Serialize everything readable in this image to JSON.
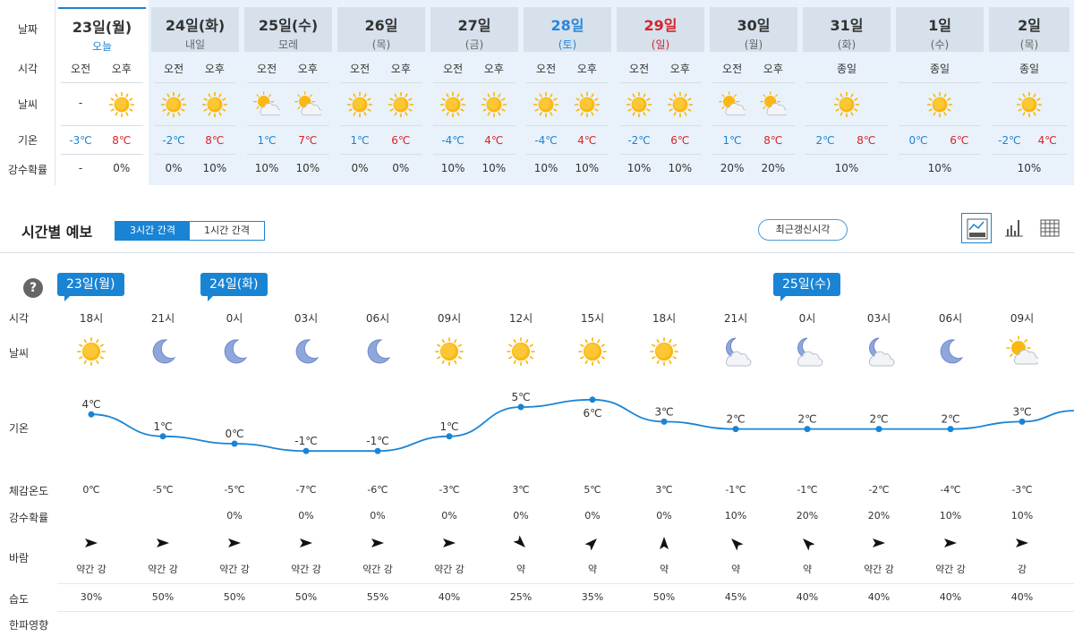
{
  "weekly": {
    "row_labels": [
      "날짜",
      "시각",
      "날씨",
      "기온",
      "강수확률"
    ],
    "days": [
      {
        "name": "23일(월)",
        "sub": "오늘",
        "type": "today",
        "split": true,
        "slots": [
          {
            "label": "오전",
            "wx": "",
            "wx_text": "-",
            "temp": "-3℃",
            "prob": "-"
          },
          {
            "label": "오후",
            "wx": "sun",
            "wx_text": "",
            "temp": "8℃",
            "prob": "0%"
          }
        ]
      },
      {
        "name": "24일(화)",
        "sub": "내일",
        "type": "normal",
        "split": true,
        "slots": [
          {
            "label": "오전",
            "wx": "sun",
            "wx_text": "",
            "temp": "-2℃",
            "prob": "0%"
          },
          {
            "label": "오후",
            "wx": "sun",
            "wx_text": "",
            "temp": "8℃",
            "prob": "10%"
          }
        ]
      },
      {
        "name": "25일(수)",
        "sub": "모레",
        "type": "normal",
        "split": true,
        "slots": [
          {
            "label": "오전",
            "wx": "suncloud",
            "wx_text": "",
            "temp": "1℃",
            "prob": "10%"
          },
          {
            "label": "오후",
            "wx": "suncloud",
            "wx_text": "",
            "temp": "7℃",
            "prob": "10%"
          }
        ]
      },
      {
        "name": "26일",
        "sub": "(목)",
        "type": "normal",
        "split": true,
        "slots": [
          {
            "label": "오전",
            "wx": "sun",
            "wx_text": "",
            "temp": "1℃",
            "prob": "0%"
          },
          {
            "label": "오후",
            "wx": "sun",
            "wx_text": "",
            "temp": "6℃",
            "prob": "0%"
          }
        ]
      },
      {
        "name": "27일",
        "sub": "(금)",
        "type": "normal",
        "split": true,
        "slots": [
          {
            "label": "오전",
            "wx": "sun",
            "wx_text": "",
            "temp": "-4℃",
            "prob": "10%"
          },
          {
            "label": "오후",
            "wx": "sun",
            "wx_text": "",
            "temp": "4℃",
            "prob": "10%"
          }
        ]
      },
      {
        "name": "28일",
        "sub": "(토)",
        "type": "sat",
        "split": true,
        "slots": [
          {
            "label": "오전",
            "wx": "sun",
            "wx_text": "",
            "temp": "-4℃",
            "prob": "10%"
          },
          {
            "label": "오후",
            "wx": "sun",
            "wx_text": "",
            "temp": "4℃",
            "prob": "10%"
          }
        ]
      },
      {
        "name": "29일",
        "sub": "(일)",
        "type": "sun",
        "split": true,
        "slots": [
          {
            "label": "오전",
            "wx": "sun",
            "wx_text": "",
            "temp": "-2℃",
            "prob": "10%"
          },
          {
            "label": "오후",
            "wx": "sun",
            "wx_text": "",
            "temp": "6℃",
            "prob": "10%"
          }
        ]
      },
      {
        "name": "30일",
        "sub": "(월)",
        "type": "normal",
        "split": true,
        "slots": [
          {
            "label": "오전",
            "wx": "suncloud",
            "wx_text": "",
            "temp": "1℃",
            "prob": "20%"
          },
          {
            "label": "오후",
            "wx": "suncloud",
            "wx_text": "",
            "temp": "8℃",
            "prob": "20%"
          }
        ]
      },
      {
        "name": "31일",
        "sub": "(화)",
        "type": "normal",
        "split": false,
        "allday": "종일",
        "wx": "sun",
        "tmin": "2℃",
        "tmax": "8℃",
        "prob": "10%"
      },
      {
        "name": "1일",
        "sub": "(수)",
        "type": "normal",
        "split": false,
        "allday": "종일",
        "wx": "sun",
        "tmin": "0℃",
        "tmax": "6℃",
        "prob": "10%"
      },
      {
        "name": "2일",
        "sub": "(목)",
        "type": "normal",
        "split": false,
        "allday": "종일",
        "wx": "sun",
        "tmin": "-2℃",
        "tmax": "4℃",
        "prob": "10%"
      }
    ]
  },
  "hourly_header": {
    "title": "시간별 예보",
    "tabs": [
      {
        "label": "3시간 간격",
        "active": true
      },
      {
        "label": "1시간 간격",
        "active": false
      }
    ],
    "update_button": "최근갱신시각",
    "view_icons": [
      "line-chart-icon",
      "bar-chart-icon",
      "table-icon"
    ]
  },
  "hourly": {
    "help": "?",
    "row_labels": {
      "time": "시각",
      "weather": "날씨",
      "temp": "기온",
      "feels": "체감온도",
      "prob": "강수확률",
      "wind": "바람",
      "humidity": "습도",
      "cold": "한파영향"
    },
    "date_badges": [
      {
        "label": "23일(월)",
        "col": 0
      },
      {
        "label": "24일(화)",
        "col": 2
      },
      {
        "label": "25일(수)",
        "col": 10
      }
    ],
    "columns": [
      {
        "time": "18시",
        "wx": "sun",
        "temp": 4,
        "temp_label": "4℃",
        "feels": "0℃",
        "prob": "",
        "wind_dir": 0,
        "wind": "약간 강",
        "humidity": "30%"
      },
      {
        "time": "21시",
        "wx": "moon",
        "temp": 1,
        "temp_label": "1℃",
        "feels": "-5℃",
        "prob": "",
        "wind_dir": 0,
        "wind": "약간 강",
        "humidity": "50%"
      },
      {
        "time": "0시",
        "wx": "moon",
        "temp": 0,
        "temp_label": "0℃",
        "feels": "-5℃",
        "prob": "0%",
        "wind_dir": 0,
        "wind": "약간 강",
        "humidity": "50%"
      },
      {
        "time": "03시",
        "wx": "moon",
        "temp": -1,
        "temp_label": "-1℃",
        "feels": "-7℃",
        "prob": "0%",
        "wind_dir": 0,
        "wind": "약간 강",
        "humidity": "50%"
      },
      {
        "time": "06시",
        "wx": "moon",
        "temp": -1,
        "temp_label": "-1℃",
        "feels": "-6℃",
        "prob": "0%",
        "wind_dir": 0,
        "wind": "약간 강",
        "humidity": "55%"
      },
      {
        "time": "09시",
        "wx": "sun",
        "temp": 1,
        "temp_label": "1℃",
        "feels": "-3℃",
        "prob": "0%",
        "wind_dir": 0,
        "wind": "약간 강",
        "humidity": "40%"
      },
      {
        "time": "12시",
        "wx": "sun",
        "temp": 5,
        "temp_label": "5℃",
        "feels": "3℃",
        "prob": "0%",
        "wind_dir": 45,
        "wind": "약",
        "humidity": "25%"
      },
      {
        "time": "15시",
        "wx": "sun",
        "temp": 6,
        "temp_label": "6℃",
        "feels": "5℃",
        "prob": "0%",
        "wind_dir": -45,
        "wind": "약",
        "humidity": "35%"
      },
      {
        "time": "18시",
        "wx": "sun",
        "temp": 3,
        "temp_label": "3℃",
        "feels": "3℃",
        "prob": "0%",
        "wind_dir": -90,
        "wind": "약",
        "humidity": "50%"
      },
      {
        "time": "21시",
        "wx": "mooncloud",
        "temp": 2,
        "temp_label": "2℃",
        "feels": "-1℃",
        "prob": "10%",
        "wind_dir": -135,
        "wind": "약",
        "humidity": "45%"
      },
      {
        "time": "0시",
        "wx": "mooncloud",
        "temp": 2,
        "temp_label": "2℃",
        "feels": "-1℃",
        "prob": "20%",
        "wind_dir": -135,
        "wind": "약",
        "humidity": "40%"
      },
      {
        "time": "03시",
        "wx": "mooncloud",
        "temp": 2,
        "temp_label": "2℃",
        "feels": "-2℃",
        "prob": "20%",
        "wind_dir": 0,
        "wind": "약간 강",
        "humidity": "40%"
      },
      {
        "time": "06시",
        "wx": "moon",
        "temp": 2,
        "temp_label": "2℃",
        "feels": "-4℃",
        "prob": "10%",
        "wind_dir": 0,
        "wind": "약간 강",
        "humidity": "40%"
      },
      {
        "time": "09시",
        "wx": "suncloud",
        "temp": 3,
        "temp_label": "3℃",
        "feels": "-3℃",
        "prob": "10%",
        "wind_dir": 0,
        "wind": "강",
        "humidity": "40%"
      }
    ],
    "line_color": "#1a84d4"
  }
}
